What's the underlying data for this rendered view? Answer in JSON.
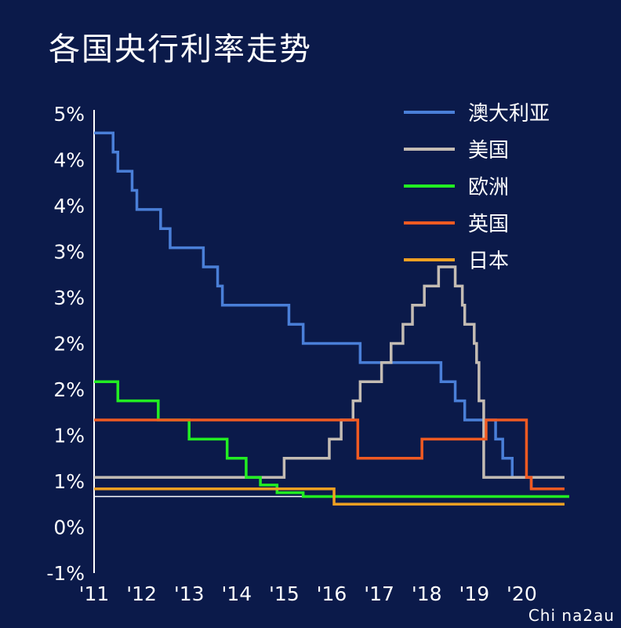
{
  "watermark": "Chi na2au",
  "chart_data": {
    "type": "line",
    "step": true,
    "title": "各国央行利率走势",
    "xlabel": "",
    "ylabel": "",
    "ylim": [
      -1,
      5
    ],
    "xlim": [
      2011,
      2021
    ],
    "y_tick_labels": [
      "5%",
      "4%",
      "4%",
      "3%",
      "3%",
      "2%",
      "2%",
      "1%",
      "1%",
      "0%",
      "-1%"
    ],
    "x_tick_labels": [
      "'11",
      "'12",
      "'13",
      "'14",
      "'15",
      "'16",
      "'17",
      "'18",
      "'19",
      "'20"
    ],
    "legend_position": "top-right",
    "series": [
      {
        "name": "澳大利亚",
        "color": "#4a7fd8",
        "points": [
          [
            2011,
            4.75
          ],
          [
            2011.4,
            4.5
          ],
          [
            2011.5,
            4.25
          ],
          [
            2011.8,
            4.0
          ],
          [
            2011.9,
            3.75
          ],
          [
            2012.4,
            3.5
          ],
          [
            2012.6,
            3.25
          ],
          [
            2013.3,
            3.0
          ],
          [
            2013.6,
            2.75
          ],
          [
            2013.7,
            2.5
          ],
          [
            2015.1,
            2.25
          ],
          [
            2015.4,
            2.0
          ],
          [
            2016.3,
            2.0
          ],
          [
            2016.6,
            1.75
          ],
          [
            2018.3,
            1.5
          ],
          [
            2018.6,
            1.25
          ],
          [
            2018.8,
            1.0
          ],
          [
            2019.45,
            0.75
          ],
          [
            2019.6,
            0.5
          ],
          [
            2019.8,
            0.25
          ],
          [
            2020.2,
            0.1
          ],
          [
            2020.2,
            0.1
          ]
        ]
      },
      {
        "name": "美国",
        "color": "#c4bcb3",
        "points": [
          [
            2011,
            0.25
          ],
          [
            2015.0,
            0.5
          ],
          [
            2015.95,
            0.75
          ],
          [
            2016.2,
            1.0
          ],
          [
            2016.45,
            1.25
          ],
          [
            2016.6,
            1.5
          ],
          [
            2017.05,
            1.75
          ],
          [
            2017.25,
            2.0
          ],
          [
            2017.5,
            2.25
          ],
          [
            2017.7,
            2.5
          ],
          [
            2017.95,
            2.75
          ],
          [
            2018.25,
            3.0
          ],
          [
            2018.6,
            2.75
          ],
          [
            2018.75,
            2.5
          ],
          [
            2018.8,
            2.25
          ],
          [
            2019.0,
            2.0
          ],
          [
            2019.05,
            1.75
          ],
          [
            2019.1,
            1.25
          ],
          [
            2019.2,
            0.25
          ],
          [
            2020.9,
            0.25
          ]
        ]
      },
      {
        "name": "欧洲",
        "color": "#22ee22",
        "points": [
          [
            2011,
            1.5
          ],
          [
            2011.5,
            1.25
          ],
          [
            2012.35,
            1.0
          ],
          [
            2013.0,
            0.75
          ],
          [
            2013.8,
            0.5
          ],
          [
            2014.1,
            0.5
          ],
          [
            2014.2,
            0.25
          ],
          [
            2014.5,
            0.15
          ],
          [
            2014.85,
            0.05
          ],
          [
            2015.2,
            0.05
          ],
          [
            2015.4,
            0.0
          ],
          [
            2021,
            0.0
          ]
        ]
      },
      {
        "name": "英国",
        "color": "#f05a22",
        "points": [
          [
            2011,
            1.0
          ],
          [
            2016.55,
            0.5
          ],
          [
            2017.9,
            0.75
          ],
          [
            2018.6,
            0.75
          ],
          [
            2019.25,
            1.0
          ],
          [
            2019.25,
            1.0
          ],
          [
            2020.1,
            0.25
          ],
          [
            2020.2,
            0.1
          ],
          [
            2020.9,
            0.1
          ]
        ]
      },
      {
        "name": "日本",
        "color": "#f0a022",
        "points": [
          [
            2011,
            0.1
          ],
          [
            2016.05,
            -0.1
          ],
          [
            2020.9,
            -0.1
          ]
        ]
      }
    ]
  }
}
